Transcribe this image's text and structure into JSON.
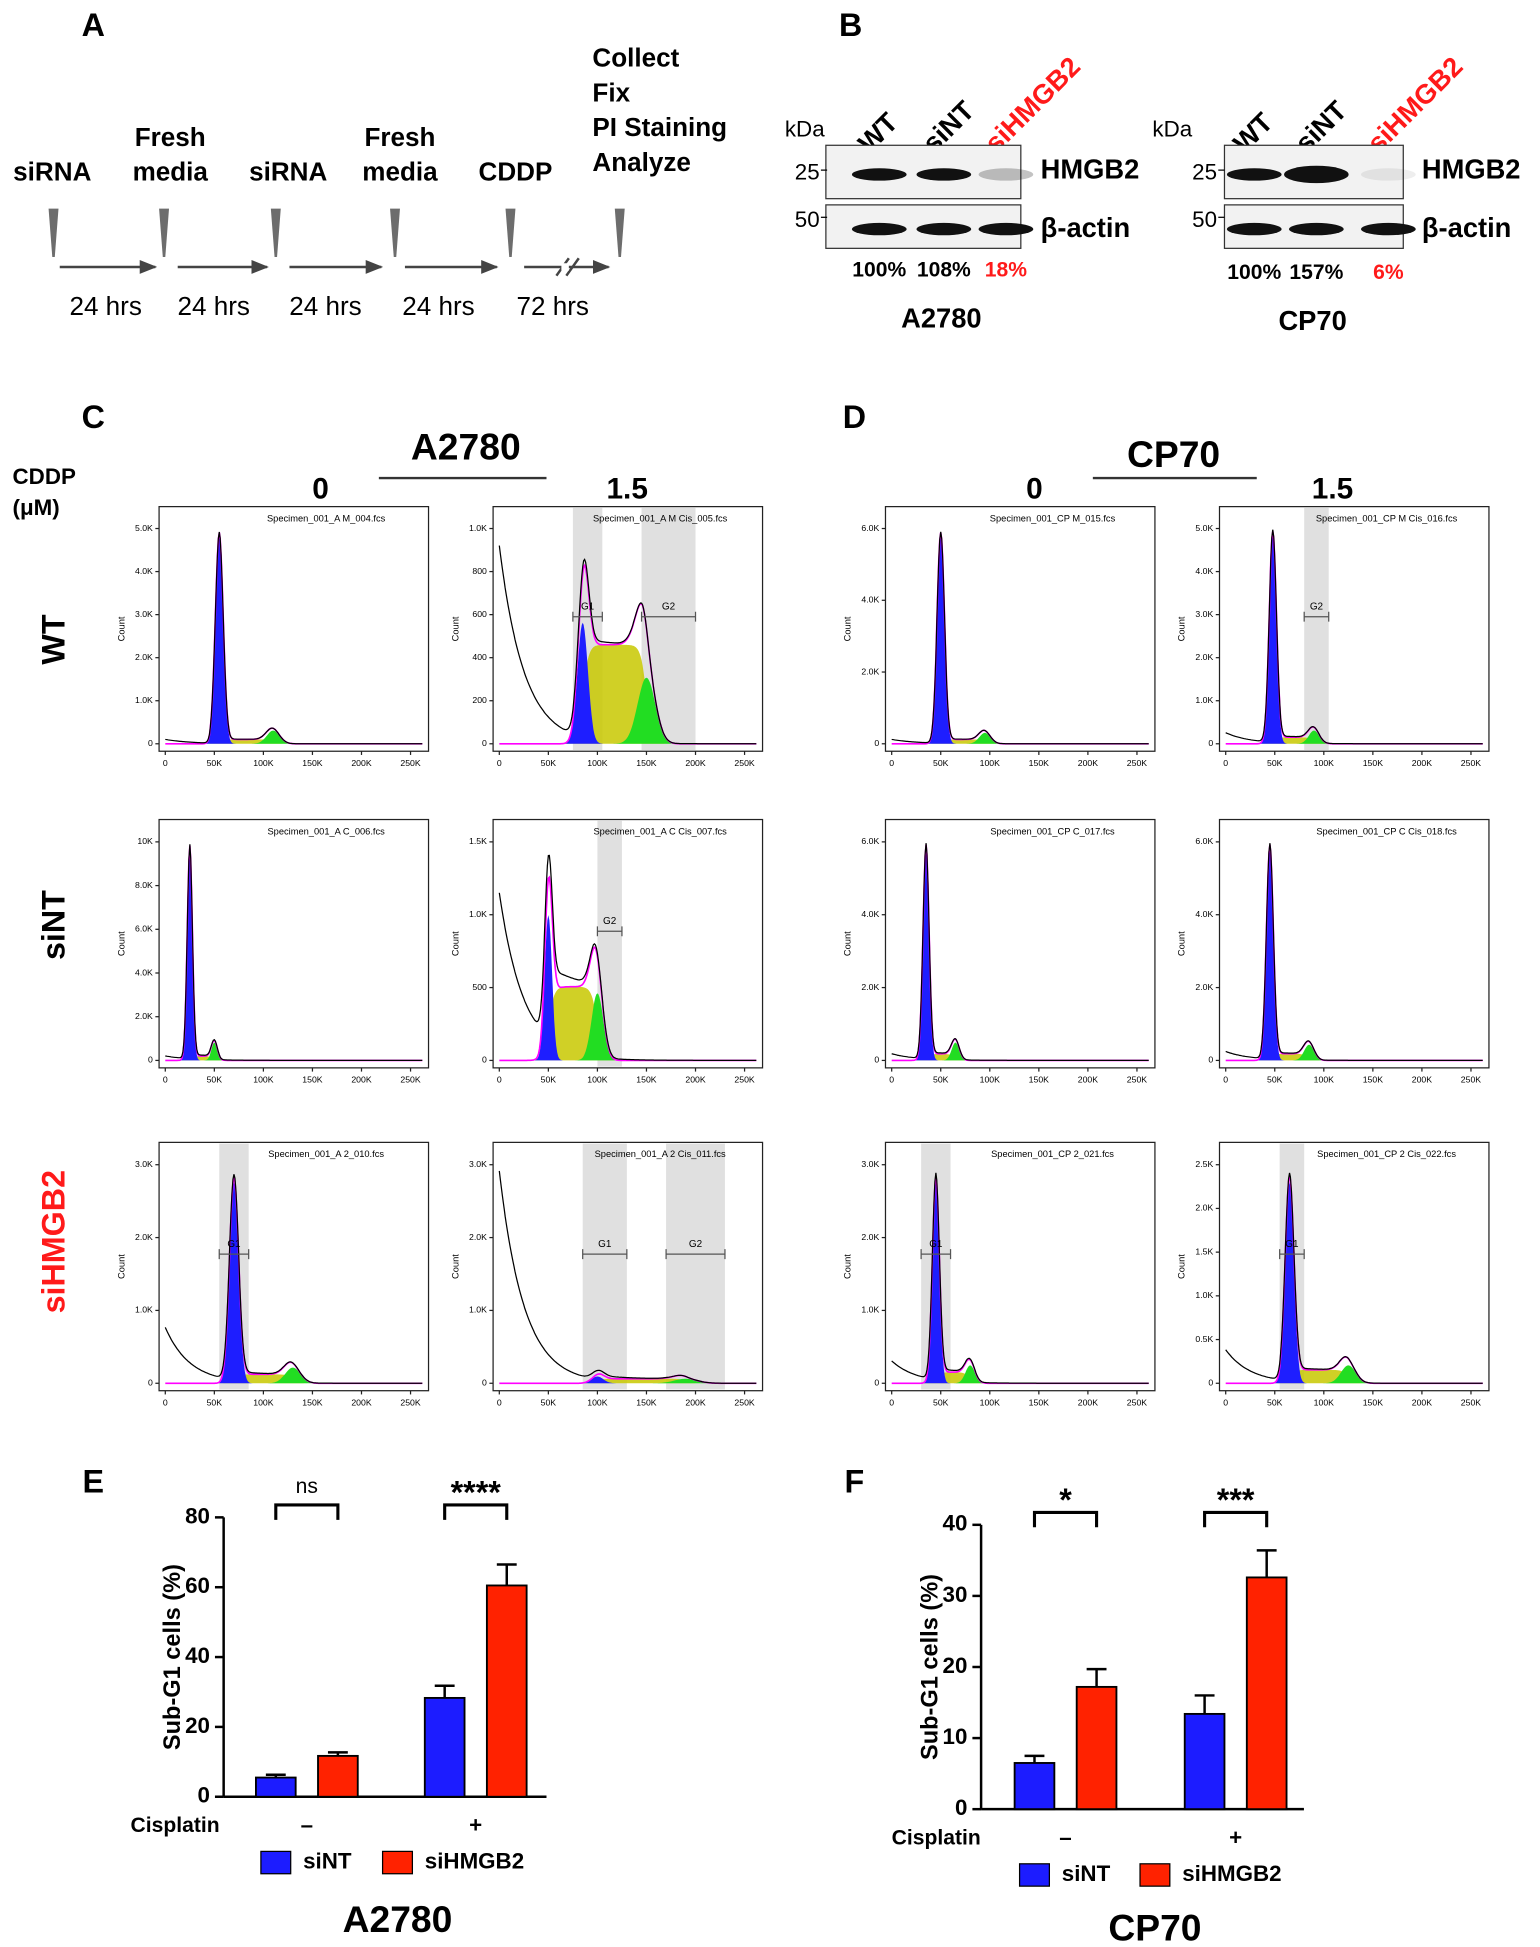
{
  "panel_a": {
    "label": "A",
    "steps": [
      [
        "siRNA"
      ],
      [
        "Fresh",
        "media"
      ],
      [
        "siRNA"
      ],
      [
        "Fresh",
        "media"
      ],
      [
        "CDDP"
      ],
      [
        "Collect",
        "Fix",
        "PI Staining",
        "Analyze"
      ]
    ],
    "durations": [
      "24 hrs",
      "24 hrs",
      "24 hrs",
      "24 hrs",
      "72 hrs"
    ]
  },
  "panel_b": {
    "label": "B",
    "unit": "kDa",
    "blots": [
      {
        "cell_line": "A2780",
        "lanes": [
          "WT",
          "siNT",
          "siHMGB2"
        ],
        "markers": [
          "25",
          "50"
        ],
        "proteins": [
          "HMGB2",
          "β-actin"
        ],
        "levels": [
          "100%",
          "108%",
          "18%"
        ]
      },
      {
        "cell_line": "CP70",
        "lanes": [
          "WT",
          "siNT",
          "siHMGB2"
        ],
        "markers": [
          "25",
          "50"
        ],
        "proteins": [
          "HMGB2",
          "β-actin"
        ],
        "levels": [
          "100%",
          "157%",
          "6%"
        ]
      }
    ]
  },
  "flow": {
    "cddp_label": [
      "CDDP",
      "(μM)"
    ],
    "row_labels": [
      "WT",
      "siNT",
      "siHMGB2"
    ],
    "x_ticks": [
      "0",
      "50K",
      "100K",
      "150K",
      "200K",
      "250K"
    ],
    "y_axis_label": "Count",
    "panels": [
      {
        "label": "C",
        "cell_line": "A2780",
        "doses": [
          "0",
          "1.5"
        ],
        "plots": [
          {
            "file": "Specimen_001_A M_004.fcs",
            "y_ticks": [
              "0",
              "1.0K",
              "2.0K",
              "3.0K",
              "4.0K",
              "5.0K"
            ],
            "gates": []
          },
          {
            "file": "Specimen_001_A M Cis_005.fcs",
            "y_ticks": [
              "0",
              "200",
              "400",
              "600",
              "800",
              "1.0K"
            ],
            "gates": [
              "G1",
              "G2"
            ]
          },
          {
            "file": "Specimen_001_A C_006.fcs",
            "y_ticks": [
              "0",
              "2.0K",
              "4.0K",
              "6.0K",
              "8.0K",
              "10K"
            ],
            "gates": []
          },
          {
            "file": "Specimen_001_A C Cis_007.fcs",
            "y_ticks": [
              "0",
              "500",
              "1.0K",
              "1.5K"
            ],
            "gates": [
              "G2"
            ]
          },
          {
            "file": "Specimen_001_A 2_010.fcs",
            "y_ticks": [
              "0",
              "1.0K",
              "2.0K",
              "3.0K"
            ],
            "gates": [
              "G1"
            ]
          },
          {
            "file": "Specimen_001_A 2 Cis_011.fcs",
            "y_ticks": [
              "0",
              "1.0K",
              "2.0K",
              "3.0K"
            ],
            "gates": [
              "G1",
              "G2"
            ]
          }
        ]
      },
      {
        "label": "D",
        "cell_line": "CP70",
        "doses": [
          "0",
          "1.5"
        ],
        "plots": [
          {
            "file": "Specimen_001_CP M_015.fcs",
            "y_ticks": [
              "0",
              "2.0K",
              "4.0K",
              "6.0K"
            ],
            "gates": []
          },
          {
            "file": "Specimen_001_CP M Cis_016.fcs",
            "y_ticks": [
              "0",
              "1.0K",
              "2.0K",
              "3.0K",
              "4.0K",
              "5.0K"
            ],
            "gates": [
              "G2"
            ]
          },
          {
            "file": "Specimen_001_CP C_017.fcs",
            "y_ticks": [
              "0",
              "2.0K",
              "4.0K",
              "6.0K"
            ],
            "gates": []
          },
          {
            "file": "Specimen_001_CP C Cis_018.fcs",
            "y_ticks": [
              "0",
              "2.0K",
              "4.0K",
              "6.0K"
            ],
            "gates": []
          },
          {
            "file": "Specimen_001_CP 2_021.fcs",
            "y_ticks": [
              "0",
              "1.0K",
              "2.0K",
              "3.0K"
            ],
            "gates": [
              "G1"
            ]
          },
          {
            "file": "Specimen_001_CP 2 Cis_022.fcs",
            "y_ticks": [
              "0",
              "0.5K",
              "1.0K",
              "1.5K",
              "2.0K",
              "2.5K"
            ],
            "gates": [
              "G1"
            ]
          }
        ]
      }
    ]
  },
  "chart_data": [
    {
      "type": "bar",
      "panel": "E",
      "title": "A2780",
      "ylabel": "Sub-G1 cells  (%)",
      "xlabel": "Cisplatin",
      "categories": [
        "–",
        "+"
      ],
      "series": [
        {
          "name": "siNT",
          "color": "#1c1cff",
          "values": [
            5.5,
            28.3
          ],
          "errors": [
            0.8,
            3.5
          ]
        },
        {
          "name": "siHMGB2",
          "color": "#ff2200",
          "values": [
            11.7,
            60.5
          ],
          "errors": [
            1.0,
            6.0
          ]
        }
      ],
      "ylim": [
        0,
        80
      ],
      "yticks": [
        0,
        20,
        40,
        60,
        80
      ],
      "annotations": [
        "ns",
        "****"
      ]
    },
    {
      "type": "bar",
      "panel": "F",
      "title": "CP70",
      "ylabel": "Sub-G1 cells  (%)",
      "xlabel": "Cisplatin",
      "categories": [
        "–",
        "+"
      ],
      "series": [
        {
          "name": "siNT",
          "color": "#1c1cff",
          "values": [
            6.5,
            13.4
          ],
          "errors": [
            1.0,
            2.6
          ]
        },
        {
          "name": "siHMGB2",
          "color": "#ff2200",
          "values": [
            17.2,
            32.6
          ],
          "errors": [
            2.5,
            3.8
          ]
        }
      ],
      "ylim": [
        0,
        40
      ],
      "yticks": [
        0,
        10,
        20,
        30,
        40
      ],
      "annotations": [
        "*",
        "***"
      ]
    }
  ]
}
